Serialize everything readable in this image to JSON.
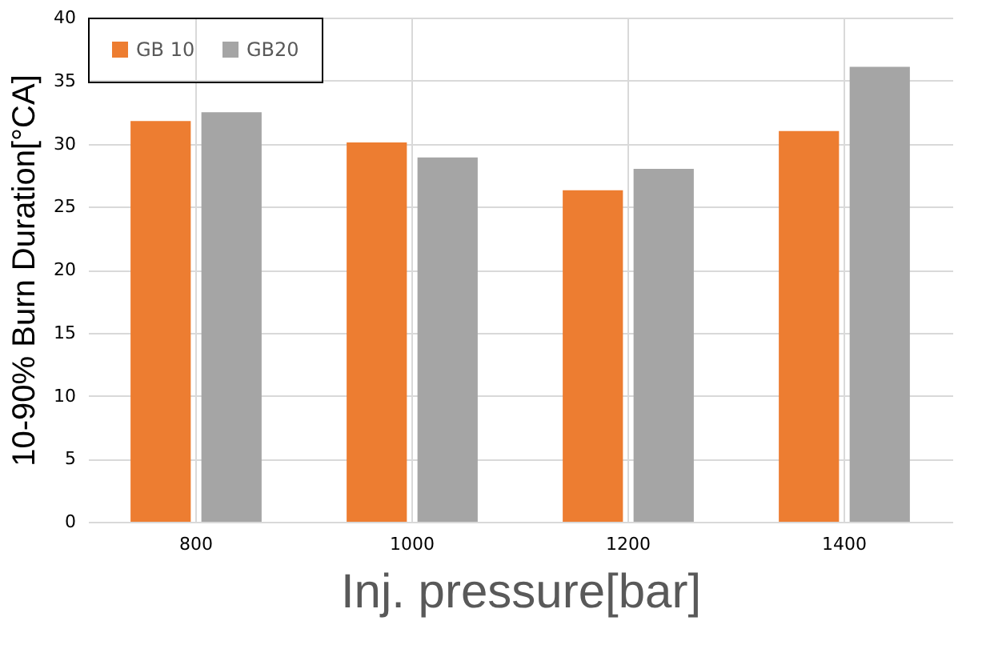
{
  "chart_data": {
    "type": "bar",
    "xlabel": "Inj. pressure[bar]",
    "ylabel": "10-90% Burn Duration[°CA]",
    "categories": [
      "800",
      "1000",
      "1200",
      "1400"
    ],
    "series": [
      {
        "name": "GB 10",
        "color": "#ed7d31",
        "values": [
          31.8,
          30.1,
          26.3,
          31.0
        ]
      },
      {
        "name": "GB20",
        "color": "#a5a5a5",
        "values": [
          32.5,
          28.9,
          28.0,
          36.1
        ]
      }
    ],
    "ylim": [
      0,
      40
    ],
    "yticks": [
      0,
      5,
      10,
      15,
      20,
      25,
      30,
      35,
      40
    ],
    "grid": true,
    "legend": "top left"
  }
}
